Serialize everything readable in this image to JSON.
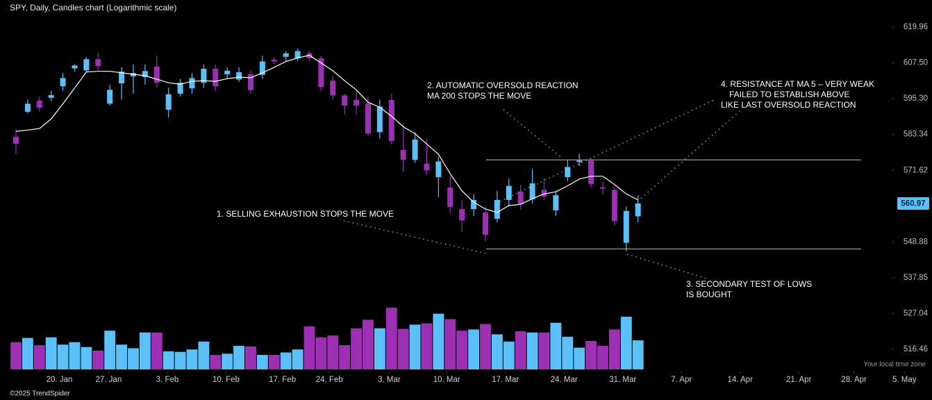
{
  "chart_data": {
    "type": "candlestick",
    "title": "SPY, Daily, Candles chart (Logarithmic scale)",
    "log_scale": true,
    "up_color": "#5bc0f8",
    "down_color": "#9c2fb4",
    "ma_color": "#ffffff",
    "level_color": "#9a9a9a",
    "ylim": [
      510.0,
      629.55
    ],
    "yticks": [
      619.96,
      {
        "value": 607.5,
        "label": "607.50"
      },
      {
        "value": 595.3,
        "label": "595.30"
      },
      583.34,
      571.62,
      548.88,
      537.85,
      527.04,
      516.46
    ],
    "xlim": [
      -1.36,
      78.05
    ],
    "xticks": [
      {
        "value": 3.7,
        "label": "20. Jan"
      },
      {
        "value": 7.9,
        "label": "27. Jan"
      },
      {
        "value": 12.9,
        "label": "3. Feb"
      },
      {
        "value": 17.9,
        "label": "10. Feb"
      },
      {
        "value": 22.7,
        "label": "17. Feb"
      },
      {
        "value": 26.7,
        "label": "24. Feb"
      },
      {
        "value": 31.8,
        "label": "3. Mar"
      },
      {
        "value": 36.7,
        "label": "10. Mar"
      },
      {
        "value": 41.7,
        "label": "17. Mar"
      },
      {
        "value": 46.7,
        "label": "24. Mar"
      },
      {
        "value": 51.7,
        "label": "31. Mar"
      },
      {
        "value": 56.7,
        "label": "7. Apr"
      },
      {
        "value": 61.7,
        "label": "14. Apr"
      },
      {
        "value": 66.7,
        "label": "21. Apr"
      },
      {
        "value": 71.4,
        "label": "28. Apr"
      },
      {
        "value": 75.7,
        "label": "5. May"
      }
    ],
    "open": [
      582.6,
      590.9,
      594.7,
      595.6,
      599.5,
      605.6,
      604.9,
      608.8,
      593.6,
      600.5,
      602.9,
      602.6,
      606.3,
      591.6,
      597.0,
      598.8,
      600.7,
      605.5,
      603.6,
      601.8,
      603.6,
      603.4,
      608.6,
      609.6,
      609.1,
      610.8,
      609.1,
      601.4,
      596.4,
      594.9,
      593.7,
      584.1,
      594.9,
      578.3,
      575.0,
      573.8,
      569.4,
      566.1,
      559.2,
      559.2,
      558.1,
      556.1,
      562.1,
      564.8,
      562.3,
      565.3,
      558.8,
      569.4,
      574.3,
      574.8,
      566.1,
      565.3,
      548.6,
      556.9
    ],
    "high": [
      585,
      595,
      596,
      598,
      604,
      607,
      609.5,
      611,
      600,
      606,
      607,
      607,
      610,
      599,
      602,
      604,
      607,
      607,
      606,
      606,
      605,
      610,
      609.5,
      611.5,
      612.5,
      611.5,
      610,
      603,
      597,
      598,
      596,
      595,
      597,
      587,
      584,
      582,
      576,
      570,
      562,
      564,
      560,
      565,
      569,
      567,
      572,
      569,
      565,
      575,
      577,
      575.5,
      568,
      566,
      560,
      563.5
    ],
    "low": [
      577,
      590.5,
      591,
      594.5,
      598,
      604.5,
      604.5,
      605,
      593,
      595,
      597,
      600,
      599,
      589,
      596,
      597,
      599,
      598,
      602,
      601,
      597,
      602,
      607,
      608,
      608,
      608,
      598,
      595,
      590,
      590,
      583,
      582,
      580,
      571,
      574,
      570,
      563,
      558,
      552,
      557,
      549,
      555,
      560,
      559,
      561,
      562,
      557,
      568,
      573,
      566,
      564,
      554,
      546,
      555
    ],
    "close": [
      580.3,
      593.6,
      592.3,
      596.5,
      602.3,
      606.6,
      608.8,
      606.4,
      598.3,
      604.5,
      604.0,
      604.7,
      600.7,
      596.8,
      600.7,
      602.3,
      605.5,
      599.5,
      604.8,
      604.3,
      598.2,
      608.0,
      608.0,
      610.8,
      611.6,
      609.1,
      599.2,
      596.4,
      593.0,
      593.0,
      583.6,
      592.6,
      581.2,
      575.0,
      581.7,
      571.6,
      574.5,
      559.8,
      555.6,
      562.1,
      551.1,
      562.1,
      566.6,
      560.7,
      567.4,
      563.2,
      563.6,
      572.7,
      574.8,
      567.2,
      565.7,
      555.4,
      558.6,
      560.97
    ],
    "ma": [
      584.4,
      584.8,
      585.3,
      588.5,
      593.6,
      598.9,
      604.4,
      604.6,
      604.6,
      604.1,
      603.6,
      603.1,
      601.9,
      600.7,
      600.2,
      601.2,
      601.4,
      601.2,
      602.1,
      602.6,
      602.4,
      604.1,
      606.0,
      608.0,
      609.2,
      610.1,
      607.5,
      604.8,
      601.4,
      598.3,
      594.1,
      592.4,
      589.4,
      585.9,
      583.6,
      580.2,
      576.8,
      570.5,
      565.0,
      561.4,
      559.2,
      558.1,
      560.3,
      560.7,
      562.5,
      564.0,
      564.7,
      566.6,
      568.8,
      569.7,
      569.7,
      567.0,
      564.0,
      562.1
    ],
    "volume": [
      45,
      52,
      40,
      53,
      41,
      45,
      37,
      31,
      64,
      41,
      35,
      61,
      61,
      30,
      29,
      33,
      46,
      24,
      26,
      39,
      38,
      24,
      24,
      28,
      33,
      71,
      53,
      56,
      40,
      68,
      82,
      68,
      102,
      67,
      74,
      76,
      92,
      83,
      64,
      66,
      75,
      58,
      46,
      63,
      61,
      61,
      77,
      54,
      36,
      47,
      39,
      66,
      87,
      48
    ],
    "levels": [
      {
        "value": 575.0,
        "from": 40.06,
        "to": 72.0
      },
      {
        "value": 546.7,
        "from": 40.06,
        "to": 72.0
      }
    ],
    "annotations": [
      [
        "1. SELLING EXHAUSTION STOPS THE MOVE"
      ],
      [
        "2. AUTOMATIC OVERSOLD REACTION",
        "MA 200 STOPS THE MOVE"
      ],
      [
        "3. SECONDARY TEST OF LOWS",
        "IS BOUGHT"
      ],
      [
        "4. RESISTANCE AT MA 5 – VERY WEAK",
        "FAILED TO ESTABLISH ABOVE",
        "LIKE LAST OVERSOLD REACTION"
      ]
    ],
    "time_zone_note": "Your local time zone",
    "copyright": "©2025 TrendSpider"
  }
}
